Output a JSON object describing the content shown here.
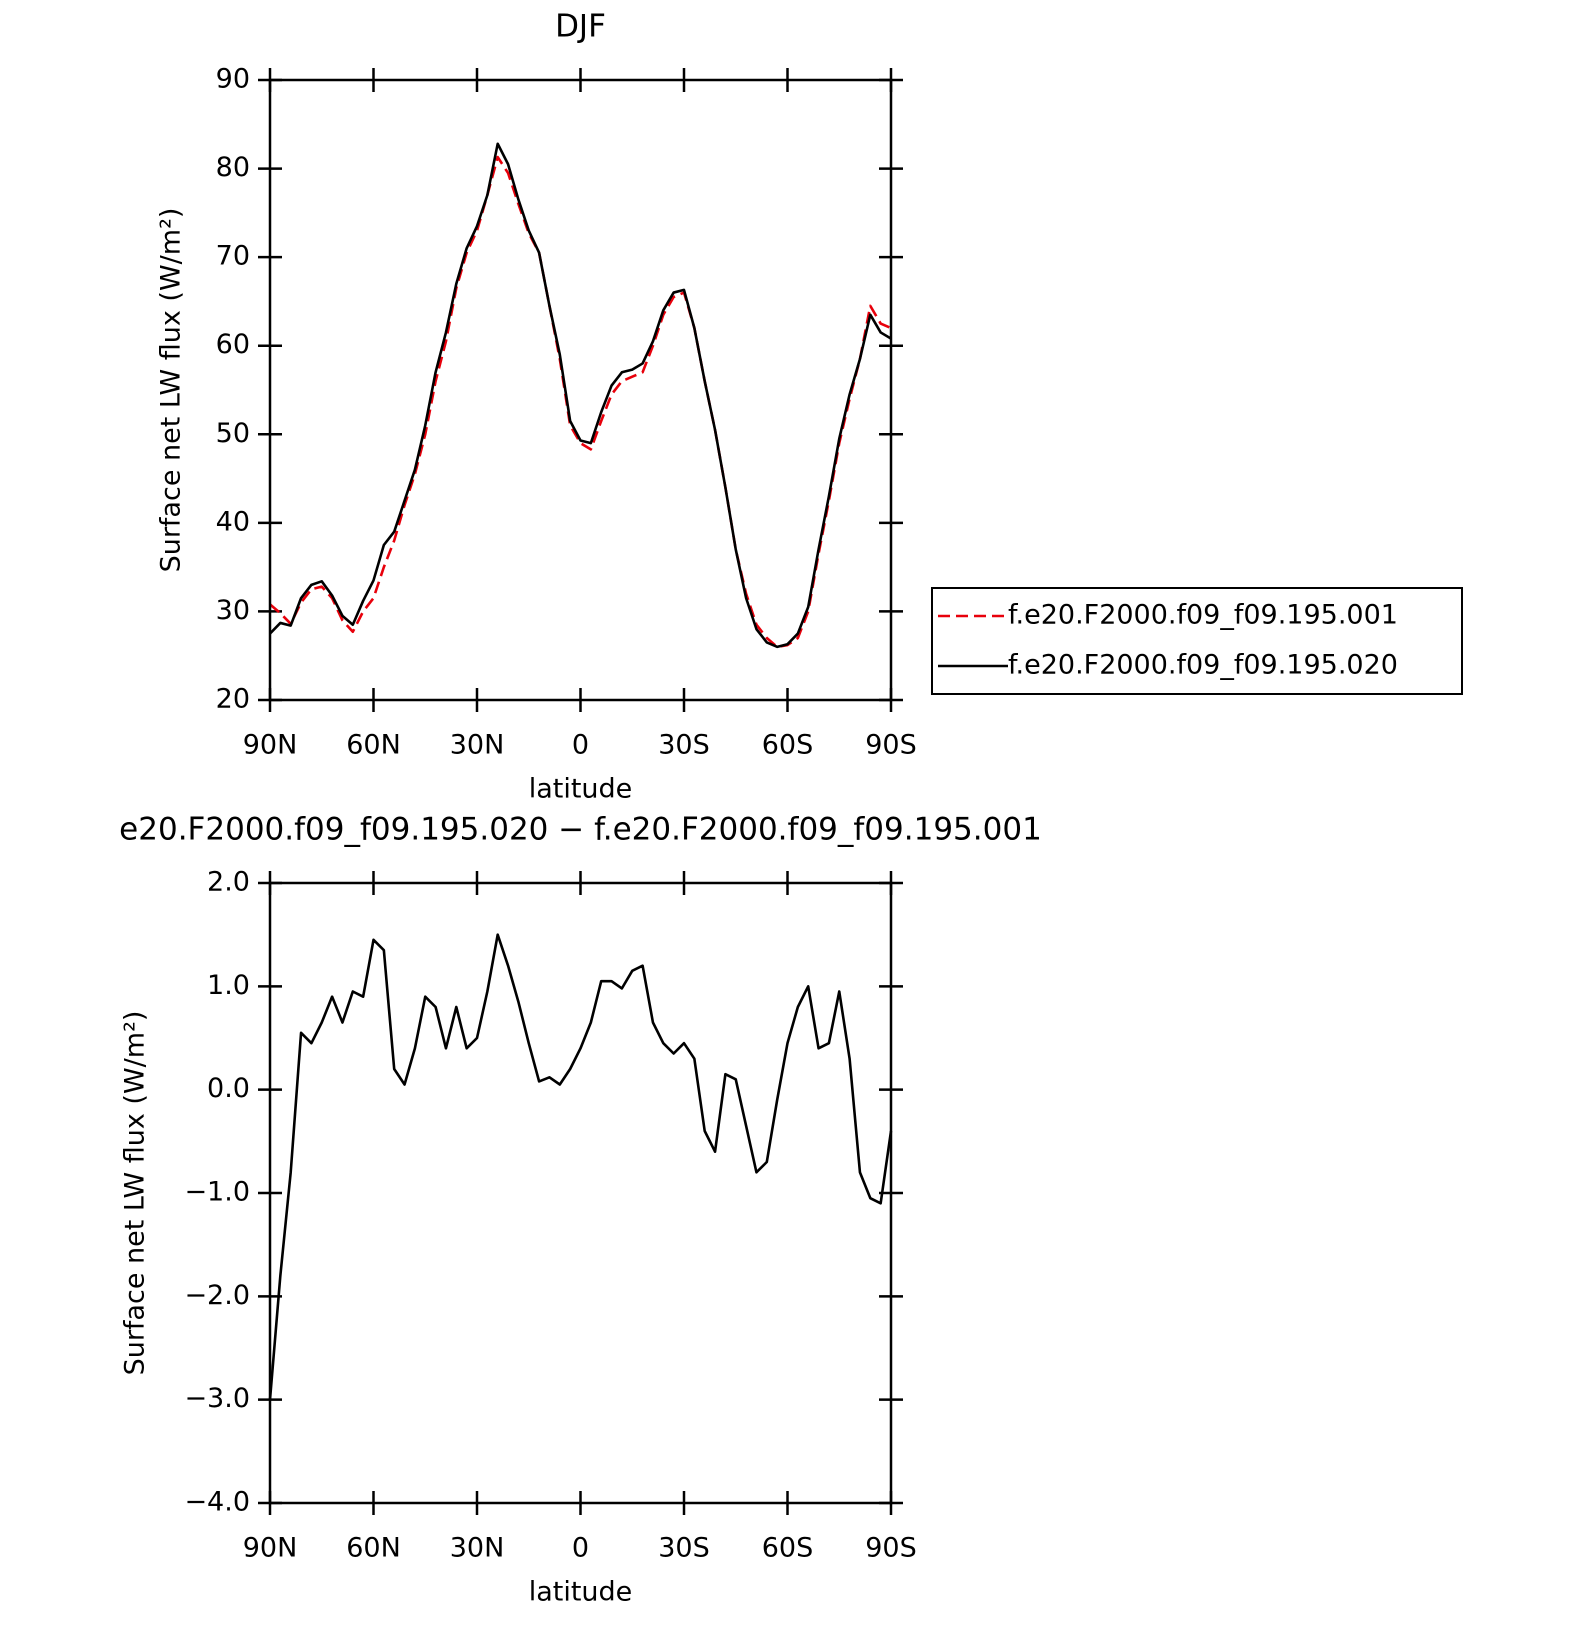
{
  "chart_data": [
    {
      "type": "line",
      "title": "DJF",
      "xlabel": "latitude",
      "ylabel": "Surface net LW flux (W/m²)",
      "x": [
        90,
        87,
        84,
        81,
        78,
        75,
        72,
        69,
        66,
        63,
        60,
        57,
        54,
        51,
        48,
        45,
        42,
        39,
        36,
        33,
        30,
        27,
        24,
        21,
        18,
        15,
        12,
        9,
        6,
        3,
        0,
        -3,
        -6,
        -9,
        -12,
        -15,
        -18,
        -21,
        -24,
        -27,
        -30,
        -33,
        -36,
        -39,
        -42,
        -45,
        -48,
        -51,
        -54,
        -57,
        -60,
        -63,
        -66,
        -69,
        -72,
        -75,
        -78,
        -81,
        -84,
        -87,
        -90
      ],
      "series": [
        {
          "name": "f.e20.F2000.f09_f09.195.001",
          "color": "#e8000b",
          "dash": true,
          "values": [
            30.8,
            29.8,
            28.6,
            31,
            32.5,
            32.8,
            31.5,
            29,
            27.7,
            30,
            31.5,
            35,
            38,
            42,
            45.5,
            50,
            56,
            60.5,
            66.5,
            70.5,
            73,
            77,
            81.3,
            79.5,
            76,
            72.7,
            70.5,
            64.5,
            58.5,
            51,
            49,
            48.3,
            51.5,
            54.5,
            56,
            56.5,
            57,
            60,
            63.5,
            65.5,
            66,
            62,
            56,
            50.5,
            44,
            37,
            32,
            28.5,
            27,
            26,
            26.2,
            27,
            30,
            36.5,
            42.5,
            49,
            54,
            58.5,
            64.5,
            62.5,
            62
          ]
        },
        {
          "name": "f.e20.F2000.f09_f09.195.020",
          "color": "#000000",
          "dash": false,
          "values": [
            27.5,
            28.7,
            28.4,
            31.5,
            33,
            33.4,
            31.8,
            29.5,
            28.5,
            31.2,
            33.5,
            37.5,
            39,
            42.5,
            46,
            51,
            57,
            61.5,
            67,
            71,
            73.5,
            77,
            82.8,
            80.5,
            76.5,
            73,
            70.5,
            64.5,
            59,
            51.5,
            49.3,
            49,
            52.5,
            55.5,
            57,
            57.3,
            58,
            60.5,
            64,
            66,
            66.3,
            62,
            56,
            50.5,
            44,
            37,
            31.5,
            28,
            26.5,
            26,
            26.3,
            27.5,
            30.5,
            37,
            43,
            49.5,
            54.5,
            58.5,
            63.5,
            61.5,
            60.8
          ]
        }
      ],
      "xlim": [
        90,
        -90
      ],
      "ylim": [
        20,
        90
      ],
      "xticks": [
        {
          "value": 90,
          "label": "90N"
        },
        {
          "value": 60,
          "label": "60N"
        },
        {
          "value": 30,
          "label": "30N"
        },
        0,
        {
          "value": -30,
          "label": "30S"
        },
        {
          "value": -60,
          "label": "60S"
        },
        {
          "value": -90,
          "label": "90S"
        }
      ],
      "yticks": [
        20,
        30,
        40,
        50,
        60,
        70,
        80,
        90
      ],
      "legend": "right"
    },
    {
      "type": "line",
      "title": "e20.F2000.f09_f09.195.020 − f.e20.F2000.f09_f09.195.001",
      "xlabel": "latitude",
      "ylabel": "Surface net LW flux (W/m²)",
      "x": [
        90,
        87,
        84,
        81,
        78,
        75,
        72,
        69,
        66,
        63,
        60,
        57,
        54,
        51,
        48,
        45,
        42,
        39,
        36,
        33,
        30,
        27,
        24,
        21,
        18,
        15,
        12,
        9,
        6,
        3,
        0,
        -3,
        -6,
        -9,
        -12,
        -15,
        -18,
        -21,
        -24,
        -27,
        -30,
        -33,
        -36,
        -39,
        -42,
        -45,
        -48,
        -51,
        -54,
        -57,
        -60,
        -63,
        -66,
        -69,
        -72,
        -75,
        -78,
        -81,
        -84,
        -87,
        -90
      ],
      "series": [
        {
          "color": "#000000",
          "dash": false,
          "values": [
            -3.0,
            -1.8,
            -0.8,
            0.55,
            0.45,
            0.65,
            0.9,
            0.65,
            0.95,
            0.9,
            1.45,
            1.35,
            0.2,
            0.05,
            0.4,
            0.9,
            0.8,
            0.4,
            0.8,
            0.4,
            0.5,
            0.95,
            1.5,
            1.2,
            0.85,
            0.45,
            0.08,
            0.12,
            0.05,
            0.2,
            0.4,
            0.65,
            1.05,
            1.05,
            0.98,
            1.15,
            1.2,
            0.65,
            0.45,
            0.35,
            0.45,
            0.3,
            -0.4,
            -0.6,
            0.15,
            0.1,
            -0.35,
            -0.8,
            -0.7,
            -0.1,
            0.45,
            0.8,
            1.0,
            0.4,
            0.45,
            0.95,
            0.3,
            -0.8,
            -1.05,
            -1.1,
            -0.4
          ]
        }
      ],
      "xlim": [
        90,
        -90
      ],
      "ylim": [
        -4,
        2
      ],
      "xticks": [
        {
          "value": 90,
          "label": "90N"
        },
        {
          "value": 60,
          "label": "60N"
        },
        {
          "value": 30,
          "label": "30N"
        },
        0,
        {
          "value": -30,
          "label": "30S"
        },
        {
          "value": -60,
          "label": "60S"
        },
        {
          "value": -90,
          "label": "90S"
        }
      ],
      "yticks": [
        {
          "value": -4,
          "label": "−4.0"
        },
        {
          "value": -3,
          "label": "−3.0"
        },
        {
          "value": -2,
          "label": "−2.0"
        },
        {
          "value": -1,
          "label": "−1.0"
        },
        {
          "value": 0,
          "label": "0.0"
        },
        {
          "value": 1,
          "label": "1.0"
        },
        {
          "value": 2,
          "label": "2.0"
        }
      ]
    }
  ]
}
